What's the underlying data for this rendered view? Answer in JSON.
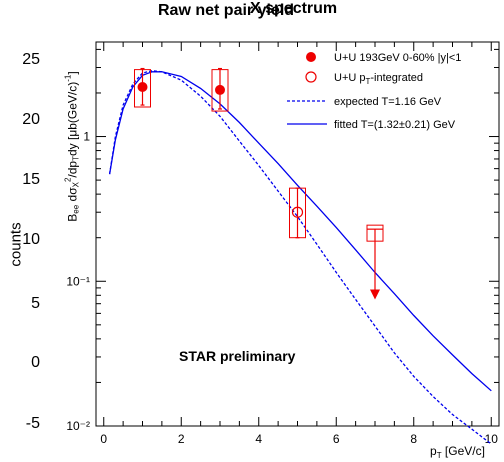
{
  "outer_chart": {
    "title": "Raw net pair yield",
    "ylabel": "counts",
    "yticks": [
      "25",
      "20",
      "15",
      "10",
      "5",
      "0",
      "-5"
    ]
  },
  "chart_data": {
    "type": "scatter",
    "title": "X spectrum",
    "xlabel": "p_T [GeV/c]",
    "ylabel": "B_ee dσ²_X/dp_T dy [μb(GeV/c)⁻¹]",
    "xlim": [
      -0.2,
      10.2
    ],
    "ylim": [
      0.01,
      4.5
    ],
    "yscale": "log",
    "x_ticks": [
      "0",
      "2",
      "4",
      "6",
      "8",
      "10"
    ],
    "y_ticks": [
      {
        "value": 1,
        "label": "1"
      },
      {
        "value": 0.1,
        "label": "10⁻¹"
      },
      {
        "value": 0.01,
        "label": "10⁻²"
      }
    ],
    "annotation": "STAR preliminary",
    "legend": {
      "placement": "top-right",
      "entries": [
        {
          "label": "U+U 193GeV 0-60% |y|<1",
          "marker": "filled-circle"
        },
        {
          "label": "U+U p_T-integrated",
          "marker": "open-circle"
        },
        {
          "label": "expected T=1.16 GeV",
          "marker": "dashed-line"
        },
        {
          "label": "fitted T=(1.32±0.21) GeV",
          "marker": "solid-line"
        }
      ]
    },
    "series": [
      {
        "name": "U+U 193GeV 0-60% |y|<1",
        "points": [
          {
            "x": 1.0,
            "y": 2.2,
            "stat": [
              1.65,
              2.95
            ],
            "sys": [
              1.6,
              2.9
            ]
          },
          {
            "x": 3.0,
            "y": 2.1,
            "stat": [
              1.55,
              2.95
            ],
            "sys": [
              1.5,
              2.9
            ]
          }
        ]
      },
      {
        "name": "U+U p_T-integrated",
        "points": [
          {
            "x": 5.0,
            "y": 0.3,
            "stat": [
              0.2,
              0.44
            ],
            "sys": [
              0.2,
              0.44
            ]
          }
        ]
      },
      {
        "name": "upper limit",
        "points": [
          {
            "x": 7.0,
            "y": 0.215,
            "arrow_to": 0.076
          }
        ]
      }
    ],
    "curves": [
      {
        "name": "expected T=1.16 GeV",
        "style": "dashed",
        "color": "#0000ee",
        "x": [
          0.15,
          0.3,
          0.5,
          0.75,
          1.0,
          1.25,
          1.5,
          2.0,
          2.5,
          3.0,
          3.5,
          4.0,
          4.5,
          5.0,
          5.5,
          6.0,
          6.5,
          7.0,
          7.5,
          8.0,
          8.5,
          9.0,
          9.5,
          10.0
        ],
        "y": [
          0.55,
          1.0,
          1.65,
          2.3,
          2.75,
          2.85,
          2.8,
          2.45,
          1.9,
          1.38,
          0.93,
          0.63,
          0.42,
          0.28,
          0.18,
          0.115,
          0.075,
          0.049,
          0.032,
          0.022,
          0.016,
          0.012,
          0.0095,
          0.0075
        ]
      },
      {
        "name": "fitted T=(1.32±0.21) GeV",
        "style": "solid",
        "color": "#0000ee",
        "x": [
          0.15,
          0.3,
          0.5,
          0.75,
          1.0,
          1.25,
          1.5,
          2.0,
          2.5,
          3.0,
          3.5,
          4.0,
          4.5,
          5.0,
          5.5,
          6.0,
          6.5,
          7.0,
          7.5,
          8.0,
          8.5,
          9.0,
          9.5,
          10.0
        ],
        "y": [
          0.55,
          0.95,
          1.55,
          2.2,
          2.65,
          2.8,
          2.8,
          2.6,
          2.15,
          1.68,
          1.25,
          0.9,
          0.65,
          0.46,
          0.33,
          0.235,
          0.165,
          0.115,
          0.082,
          0.058,
          0.042,
          0.031,
          0.023,
          0.0175
        ]
      }
    ],
    "colors": {
      "data": "#ee0000",
      "curves": "#0000ee"
    }
  }
}
